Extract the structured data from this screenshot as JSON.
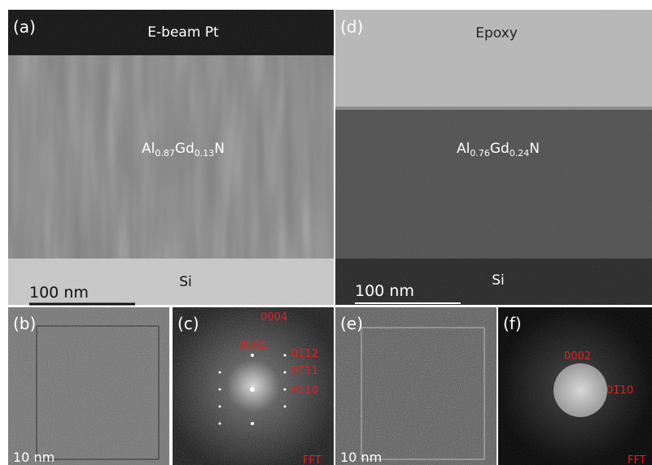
{
  "panel_a": {
    "label": "(a)",
    "top_layer": "E-beam Pt",
    "film": [
      "Al",
      "0.87",
      "Gd",
      "0.13",
      "N"
    ],
    "substrate": "Si",
    "scale_bar": "100 nm"
  },
  "panel_b": {
    "label": "(b)",
    "scale_bar": "10 nm"
  },
  "panel_c": {
    "label": "(c)",
    "spots": [
      "0004",
      "0002",
      "01̅12",
      "01̅11",
      "01̅10"
    ],
    "caption": "FFT"
  },
  "panel_d": {
    "label": "(d)",
    "top_layer": "Epoxy",
    "film": [
      "Al",
      "0.76",
      "Gd",
      "0.24",
      "N"
    ],
    "substrate": "Si",
    "scale_bar": "100 nm"
  },
  "panel_e": {
    "label": "(e)",
    "scale_bar": "10 nm"
  },
  "panel_f": {
    "label": "(f)",
    "spots": [
      "0002",
      "01̅10"
    ],
    "caption": "FFT"
  }
}
